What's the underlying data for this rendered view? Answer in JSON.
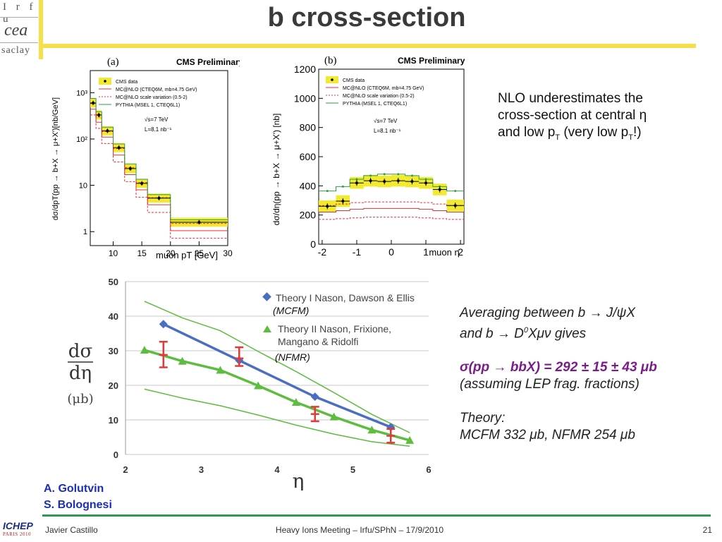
{
  "logo": {
    "line1": "I r f u",
    "line2": "cea",
    "line3": "saclay"
  },
  "slide": {
    "title": "b cross-section",
    "page_number": "21"
  },
  "colors": {
    "accent_yellow": "#f6e04a",
    "footer_green": "#2e9a50",
    "data_band": "#f2ea2e",
    "theory1_blue": "#4a6fc2",
    "theory2_green": "#5cbd3e"
  },
  "chart_a": {
    "tag": "(a)",
    "header": "CMS Preliminary",
    "ylabel": "dσ/dpT(pp → b+X → μ+X')[nb/GeV]",
    "xlabel": "muon pT [GeV]",
    "energy": "√s=7 TeV",
    "lumi": "L=8.1 nb⁻¹",
    "legend": [
      "CMS data",
      "MC@NLO (CTEQ6M, mb=4.75 GeV)",
      "MC@NLO scale variation (0.5-2)",
      "PYTHIA (MSEL 1, CTEQ6L1)"
    ]
  },
  "chart_b": {
    "tag": "(b)",
    "header": "CMS Preliminary",
    "ylabel": "dσ/dη(pp → b+X → μ+X') [nb]",
    "xlabel": "muon η",
    "energy": "√s=7 TeV",
    "lumi": "L=8.1 nb⁻¹",
    "legend": [
      "CMS data",
      "MC@NLO (CTEQ6M, mb=4.75 GeV)",
      "MC@NLO scale variation (0.5-2)",
      "PYTHIA (MSEL 1, CTEQ6L1)"
    ]
  },
  "chart_c": {
    "ylabel_top": "dσ",
    "ylabel_bottom": "dη",
    "yunit": "(μb)",
    "xlabel": "η",
    "legend1": "Theory I Nason, Dawson & Ellis",
    "legend1_sub": "(MCFM)",
    "legend2a": "Theory II Nason, Frixione,",
    "legend2b": "Mangano & Ridolfi",
    "legend2_sub": "(NFMR)"
  },
  "chart_data": [
    {
      "type": "line",
      "title": "CMS Preliminary",
      "xlabel": "muon pT [GeV]",
      "ylabel": "dσ/dpT(pp → b+X → μ+X')[nb/GeV]",
      "yscale": "log",
      "xlim": [
        6,
        30
      ],
      "ylim": [
        0.5,
        3000
      ],
      "x_ticks": [
        "10",
        "15",
        "20",
        "25",
        "30"
      ],
      "y_ticks": [
        "1",
        "10",
        "10²",
        "10³"
      ],
      "bins": [
        [
          6,
          7
        ],
        [
          7,
          8
        ],
        [
          8,
          10
        ],
        [
          10,
          12
        ],
        [
          12,
          14
        ],
        [
          14,
          16
        ],
        [
          16,
          20
        ],
        [
          20,
          30
        ]
      ],
      "series": [
        {
          "name": "CMS data",
          "values": [
            600,
            330,
            150,
            65,
            23,
            11,
            5.3,
            1.6
          ]
        },
        {
          "name": "MC@NLO (CTEQ6M, mb=4.75 GeV)",
          "values": [
            440,
            230,
            110,
            45,
            17,
            8,
            3.8,
            1.05
          ]
        },
        {
          "name": "MC@NLO scale variation (0.5-2)",
          "values": [
            330,
            170,
            80,
            32,
            12,
            5.5,
            2.6,
            0.72
          ]
        },
        {
          "name": "MC@NLO scale variation (0.5-2)",
          "values": [
            580,
            300,
            145,
            62,
            24,
            11.5,
            5.4,
            1.5
          ]
        },
        {
          "name": "PYTHIA (MSEL 1, CTEQ6L1)",
          "values": [
            750,
            390,
            180,
            78,
            29,
            13.5,
            6.3,
            1.8
          ]
        }
      ],
      "legend_location": "top-right"
    },
    {
      "type": "line",
      "title": "CMS Preliminary",
      "xlabel": "muon η",
      "ylabel": "dσ/dη(pp → b+X → μ+X') [nb]",
      "xlim": [
        -2.1,
        2.1
      ],
      "ylim": [
        0,
        1200
      ],
      "x_ticks": [
        "-2",
        "-1",
        "0",
        "1",
        "2"
      ],
      "y_ticks": [
        "0",
        "200",
        "400",
        "600",
        "800",
        "1000",
        "1200"
      ],
      "bins": [
        [
          -2.1,
          -1.6
        ],
        [
          -1.6,
          -1.2
        ],
        [
          -1.2,
          -0.8
        ],
        [
          -0.8,
          -0.4
        ],
        [
          -0.4,
          0
        ],
        [
          0,
          0.4
        ],
        [
          0.4,
          0.8
        ],
        [
          0.8,
          1.2
        ],
        [
          1.2,
          1.6
        ],
        [
          1.6,
          2.1
        ]
      ],
      "series": [
        {
          "name": "CMS data",
          "values": [
            260,
            295,
            420,
            435,
            430,
            435,
            430,
            420,
            375,
            265
          ]
        },
        {
          "name": "MC@NLO (CTEQ6M, mb=4.75 GeV)",
          "values": [
            220,
            230,
            240,
            245,
            245,
            245,
            245,
            240,
            230,
            220
          ]
        },
        {
          "name": "MC@NLO scale variation (0.5-2)",
          "values": [
            170,
            175,
            180,
            185,
            185,
            185,
            185,
            180,
            175,
            170
          ]
        },
        {
          "name": "MC@NLO scale variation (0.5-2)",
          "values": [
            265,
            275,
            285,
            290,
            290,
            290,
            290,
            285,
            275,
            265
          ]
        },
        {
          "name": "PYTHIA (MSEL 1, CTEQ6L1)",
          "values": [
            365,
            395,
            445,
            470,
            480,
            480,
            470,
            445,
            395,
            365
          ]
        }
      ],
      "legend_location": "top"
    },
    {
      "type": "line",
      "xlabel": "η",
      "ylabel": "dσ/dη (μb)",
      "xlim": [
        2,
        6
      ],
      "ylim": [
        0,
        50
      ],
      "x_ticks": [
        "2",
        "3",
        "4",
        "5",
        "6"
      ],
      "y_ticks": [
        "0",
        "10",
        "20",
        "30",
        "40",
        "50"
      ],
      "grid": true,
      "series": [
        {
          "name": "Theory I Nason, Dawson & Ellis",
          "x": [
            2.5,
            3.5,
            4.5,
            5.5
          ],
          "y": [
            37.7,
            27.2,
            16.7,
            7.9
          ]
        },
        {
          "name": "Theory II Nason, Frixione, Mangano & Ridolfi",
          "x": [
            2.25,
            2.75,
            3.25,
            3.75,
            4.25,
            4.75,
            5.25,
            5.75
          ],
          "y": [
            30.2,
            27.0,
            24.4,
            19.9,
            15.1,
            10.9,
            7.1,
            4.1
          ]
        },
        {
          "x": [
            2.25,
            2.75,
            3.25,
            3.75,
            4.25,
            4.75,
            5.25,
            5.75
          ],
          "y": [
            44.3,
            39.5,
            35.8,
            29.8,
            24.0,
            17.9,
            11.6,
            6.3
          ]
        },
        {
          "x": [
            2.25,
            2.75,
            3.25,
            3.75,
            4.25,
            4.75,
            5.25,
            5.75
          ],
          "y": [
            18.9,
            16.3,
            14.1,
            11.4,
            8.5,
            5.9,
            3.7,
            2.4
          ]
        }
      ],
      "data_points": {
        "x": [
          2.5,
          3.5,
          4.5,
          5.5
        ],
        "y": [
          28.8,
          27.8,
          11.7,
          5.4
        ],
        "err_low": [
          25.2,
          25.6,
          9.6,
          3.4
        ],
        "err_high": [
          32.6,
          31.0,
          13.8,
          7.4
        ]
      },
      "legend_location": "top-right"
    }
  ],
  "notes": {
    "nlo_line1": "NLO underestimates the",
    "nlo_line2": "cross-section at central η",
    "nlo_line3a": "and low p",
    "nlo_sub1": "T",
    "nlo_line3b": " (very low p",
    "nlo_sub2": "T",
    "nlo_line3c": "!)",
    "avg_line1": "Averaging between b → J/ψX",
    "avg_line2a": "and b → D",
    "avg_sup": "0",
    "avg_line2b": "Xμν gives",
    "sigma_line": "σ(pp → bbX) = 292 ± 15 ± 43 μb",
    "assume_line": "(assuming LEP frag. fractions)",
    "theory_line1": "Theory:",
    "theory_line2": "MCFM 332 μb, NFMR 254 μb"
  },
  "authors": {
    "name1": "A. Golutvin",
    "name2": "S. Bolognesi"
  },
  "footer": {
    "logo": "ICHEP",
    "logo_sub": "PARIS 2010",
    "presenter": "Javier Castillo",
    "center": "Heavy Ions Meeting – Irfu/SPhN – 17/9/2010"
  }
}
